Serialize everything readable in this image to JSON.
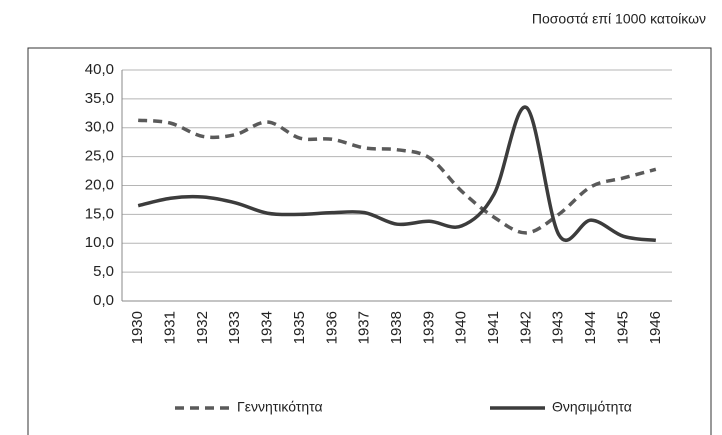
{
  "chart_data": {
    "type": "line",
    "subtitle": "Ποσοστά επί 1000 κατοίκων",
    "categories": [
      "1930",
      "1931",
      "1932",
      "1933",
      "1934",
      "1935",
      "1936",
      "1937",
      "1938",
      "1939",
      "1940",
      "1941",
      "1942",
      "1943",
      "1944",
      "1945",
      "1946"
    ],
    "series": [
      {
        "name": "Γεννητικότητα",
        "color": "#5a5a5a",
        "dash": true,
        "values": [
          31.3,
          30.8,
          28.5,
          28.8,
          31.0,
          28.2,
          28.0,
          26.5,
          26.2,
          24.8,
          19.0,
          14.5,
          11.8,
          15.0,
          19.8,
          21.3,
          22.8
        ]
      },
      {
        "name": "Θνησιμότητα",
        "color": "#3c3c3c",
        "dash": false,
        "values": [
          16.5,
          17.8,
          18.0,
          17.0,
          15.2,
          15.0,
          15.3,
          15.3,
          13.3,
          13.8,
          13.0,
          18.5,
          33.5,
          11.5,
          14.0,
          11.2,
          10.5
        ]
      }
    ],
    "ylim": [
      0,
      40
    ],
    "yticks": [
      {
        "value": 0,
        "label": "0,0"
      },
      {
        "value": 5,
        "label": "5,0"
      },
      {
        "value": 10,
        "label": "10,0"
      },
      {
        "value": 15,
        "label": "15,0"
      },
      {
        "value": 20,
        "label": "20,0"
      },
      {
        "value": 25,
        "label": "25,0"
      },
      {
        "value": 30,
        "label": "30,0"
      },
      {
        "value": 35,
        "label": "35,0"
      },
      {
        "value": 40,
        "label": "40,0"
      }
    ],
    "grid": true,
    "legend": "bottom"
  }
}
